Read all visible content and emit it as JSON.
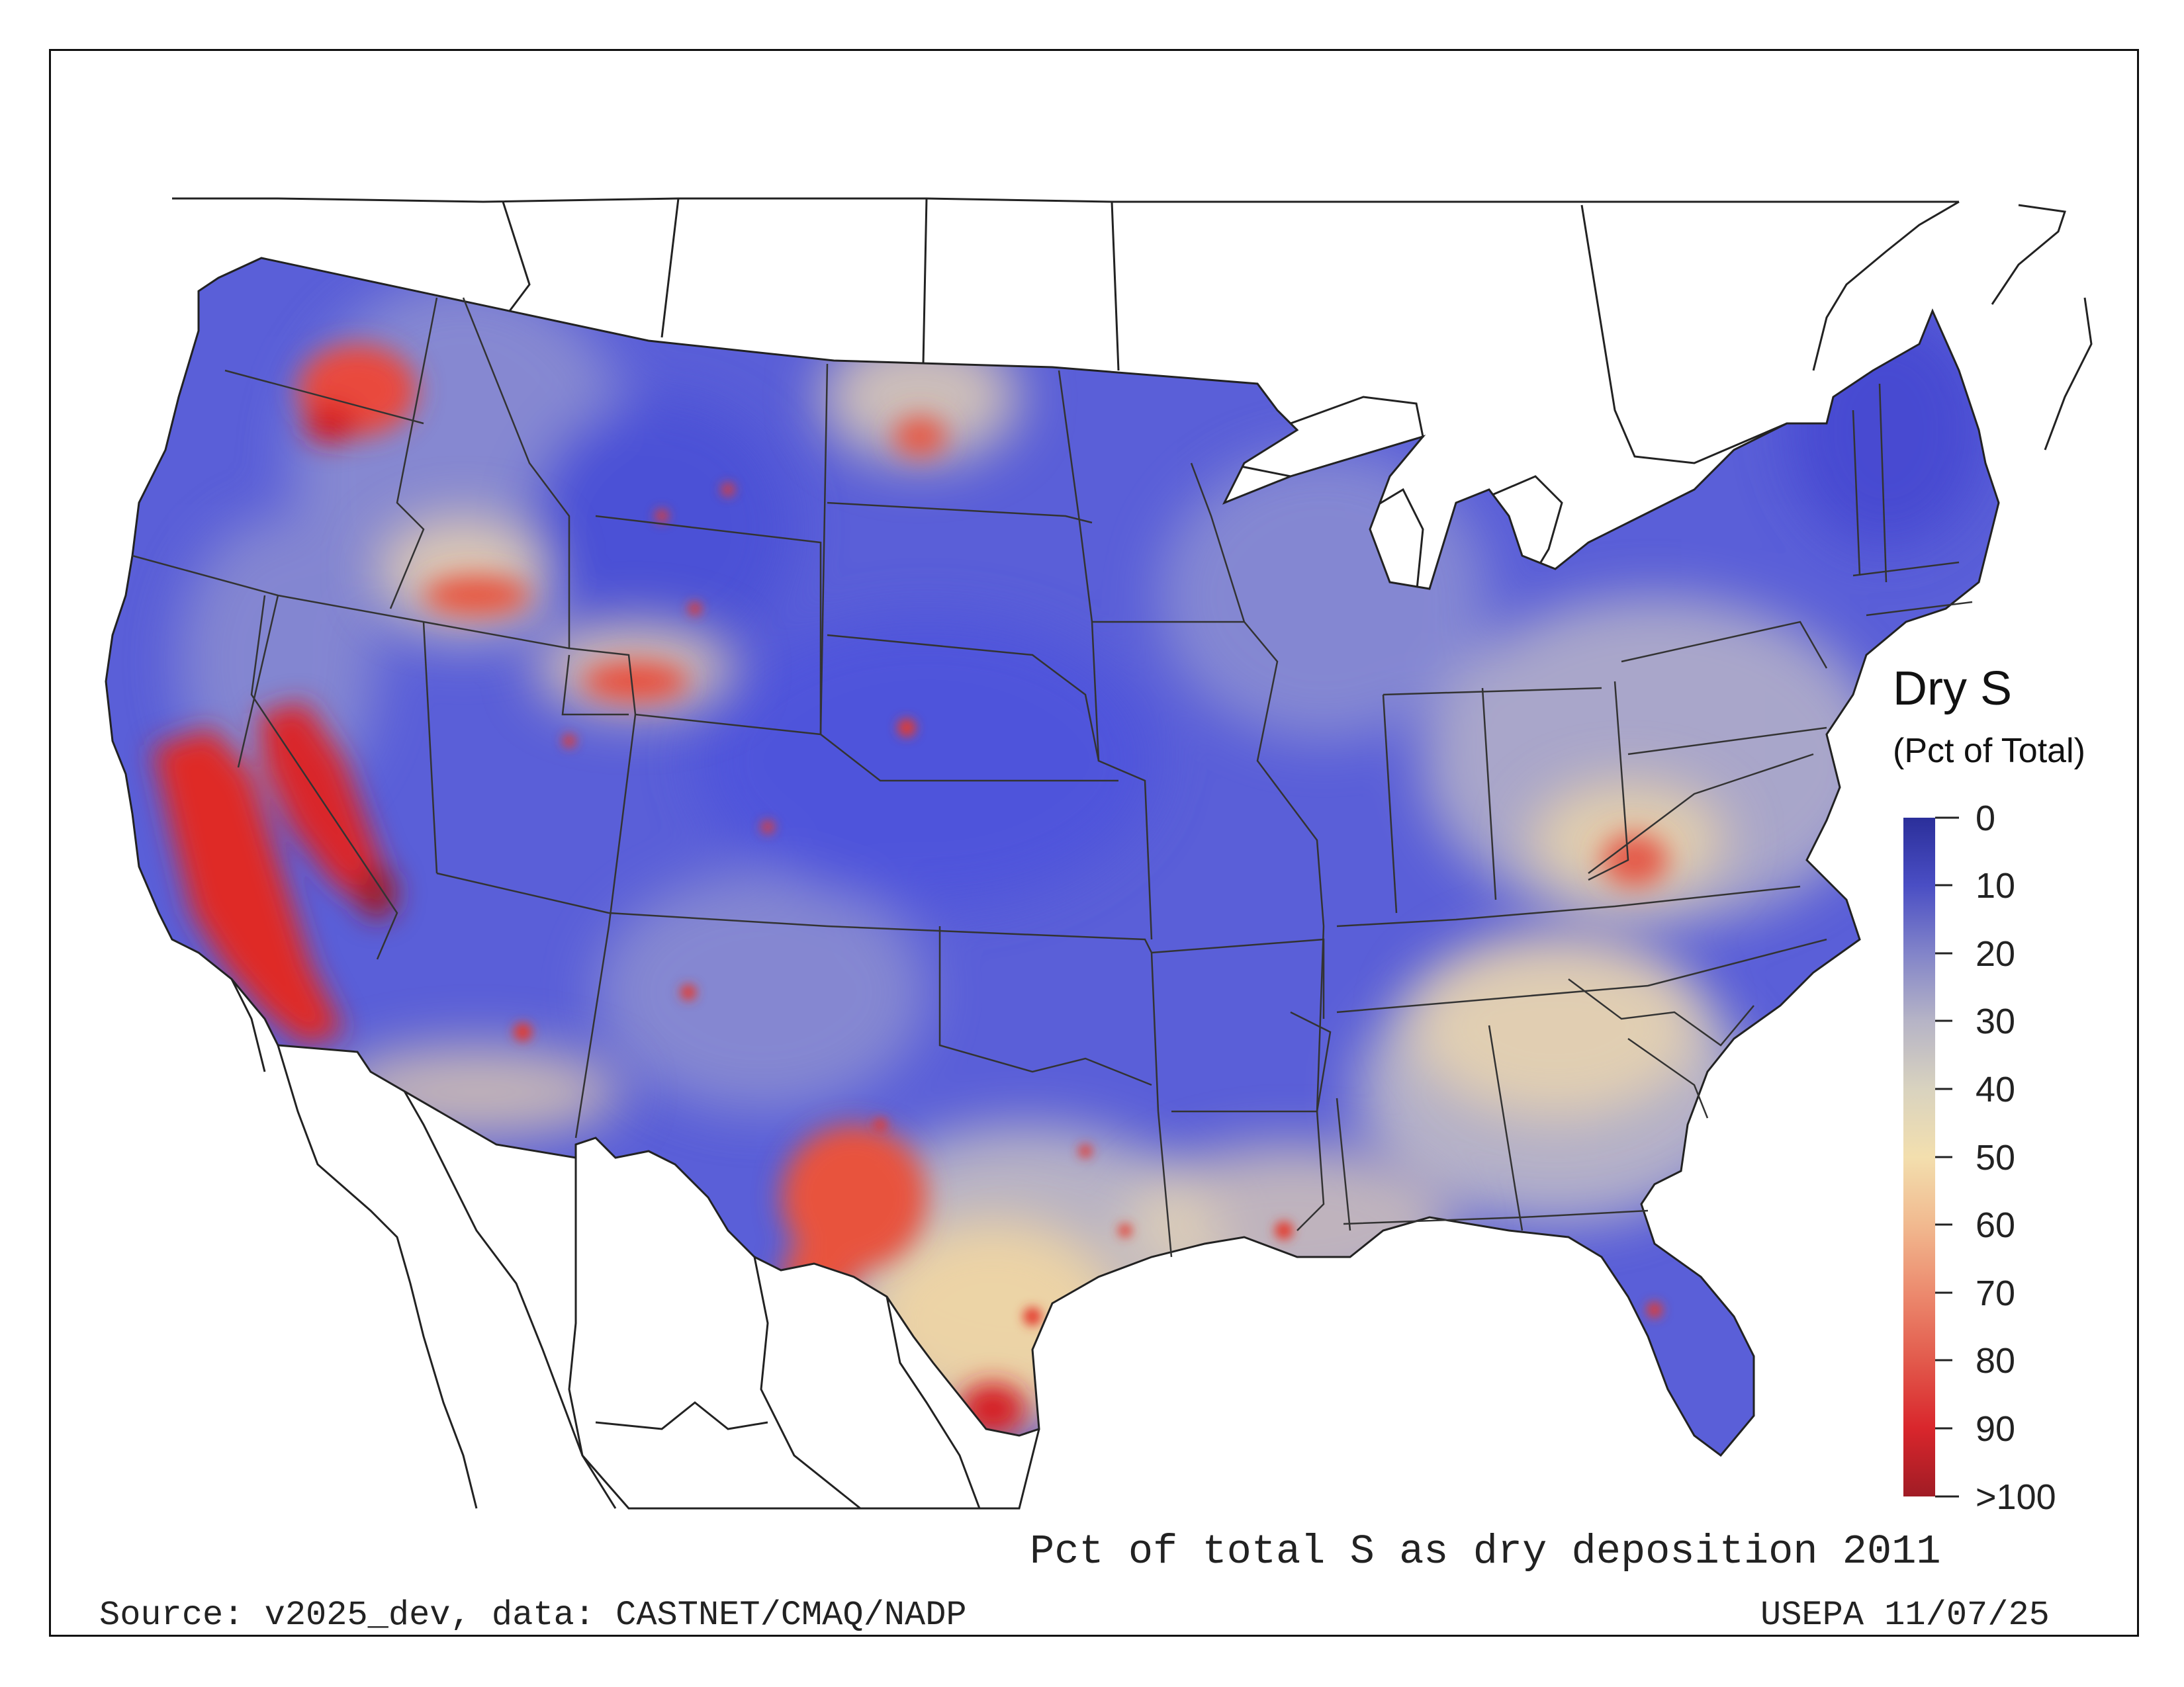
{
  "legend": {
    "title": "Dry S",
    "subtitle": "(Pct of Total)",
    "ticks": [
      "0",
      "10",
      "20",
      "30",
      "40",
      "50",
      "60",
      "70",
      "80",
      "90",
      ">100"
    ],
    "colors": [
      "#2b2f9a",
      "#4a4ec4",
      "#8284c9",
      "#b6b4c6",
      "#d9d3bf",
      "#f3dfae",
      "#f1b98f",
      "#ec8a6e",
      "#e25a4c",
      "#d9262c",
      "#a01c25"
    ]
  },
  "caption": {
    "main": "Pct of total S as dry deposition 2011",
    "source": "Source: v2025_dev, data: CASTNET/CMAQ/NADP",
    "date": "USEPA 11/07/25"
  },
  "map": {
    "base_color": "#5a5fd8",
    "hotspot_color": "#e12a2a",
    "mid_color": "#f0d9a8"
  }
}
